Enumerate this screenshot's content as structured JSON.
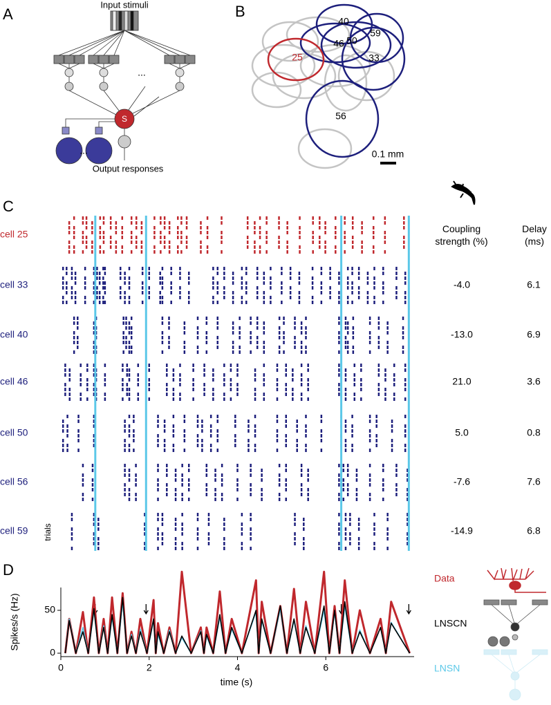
{
  "panel_labels": [
    "A",
    "B",
    "C",
    "D"
  ],
  "panel_a": {
    "input_label": "Input stimuli",
    "nonlinearity_label": "S",
    "ellipsis": "...",
    "output_label": "Output responses"
  },
  "panel_b": {
    "cell_labels": [
      "40",
      "59",
      "46",
      "50",
      "33",
      "25",
      "56"
    ],
    "scale_bar": "0.1 mm"
  },
  "panel_c": {
    "y_label": "trials",
    "columns": [
      "Coupling strength (%)",
      "Delay (ms)"
    ],
    "cells": [
      {
        "name": "cell 25",
        "color": "#c0282d",
        "spike_times": [
          0.19,
          0.3,
          0.5,
          0.58,
          0.71,
          0.89,
          0.97,
          1.13,
          1.25,
          1.39,
          1.6,
          1.71,
          1.83,
          2.12,
          2.26,
          2.35,
          2.46,
          2.65,
          2.73,
          2.85,
          3.17,
          3.32,
          3.64,
          4.23,
          4.39,
          4.51,
          4.66,
          4.94,
          5.13,
          5.41,
          5.71,
          5.86,
          5.99,
          6.22,
          6.43,
          6.61,
          6.82,
          7.08,
          7.34,
          7.77
        ]
      },
      {
        "name": "cell 33",
        "color": "#1d1f7c",
        "coupling": "-4.0",
        "delay": "6.1",
        "spike_times": [
          0.05,
          0.13,
          0.25,
          0.33,
          0.55,
          0.75,
          0.82,
          0.88,
          0.96,
          1.0,
          1.35,
          1.45,
          1.55,
          1.85,
          2.0,
          2.25,
          2.3,
          2.5,
          2.7,
          2.9,
          3.45,
          3.55,
          3.7,
          3.9,
          4.1,
          4.2,
          4.45,
          4.6,
          4.75,
          5.0,
          5.2,
          5.4,
          5.7,
          5.9,
          6.1,
          6.3,
          6.5,
          6.6,
          6.75,
          6.95,
          7.1,
          7.3,
          7.6,
          7.8
        ]
      },
      {
        "name": "cell 40",
        "color": "#1d1f7c",
        "coupling": "-13.0",
        "delay": "6.9",
        "spike_times": [
          0.3,
          0.38,
          0.75,
          0.8,
          1.42,
          1.48,
          1.55,
          1.6,
          2.3,
          2.45,
          2.8,
          3.1,
          3.3,
          3.55,
          3.9,
          4.05,
          4.3,
          4.45,
          4.6,
          4.95,
          5.05,
          5.3,
          5.45,
          5.55,
          6.3,
          6.45,
          6.5,
          6.62,
          7.0,
          7.2,
          7.4,
          7.75
        ]
      },
      {
        "name": "cell 46",
        "color": "#1d1f7c",
        "coupling": "21.0",
        "delay": "3.6",
        "spike_times": [
          0.1,
          0.2,
          0.45,
          0.6,
          0.75,
          0.8,
          1.0,
          1.4,
          1.5,
          1.55,
          1.75,
          2.0,
          2.4,
          2.55,
          2.7,
          3.0,
          3.25,
          3.45,
          3.7,
          3.85,
          4.0,
          4.4,
          4.6,
          4.9,
          5.1,
          5.25,
          5.45,
          5.6,
          6.3,
          6.45,
          6.65,
          6.8,
          7.2,
          7.35,
          7.55,
          7.8
        ]
      },
      {
        "name": "cell 50",
        "color": "#1d1f7c",
        "coupling": "5.0",
        "delay": "0.8",
        "spike_times": [
          0.05,
          0.15,
          0.4,
          0.75,
          1.45,
          1.55,
          1.65,
          2.2,
          2.35,
          2.55,
          2.8,
          3.1,
          3.2,
          3.4,
          3.55,
          3.95,
          4.25,
          4.4,
          4.9,
          5.1,
          5.35,
          5.55,
          5.9,
          6.35,
          6.45,
          6.6,
          7.0,
          7.15,
          7.5,
          7.8
        ]
      },
      {
        "name": "cell 56",
        "color": "#1d1f7c",
        "coupling": "-7.6",
        "delay": "7.6",
        "spike_times": [
          0.5,
          0.72,
          1.45,
          1.55,
          1.7,
          2.2,
          2.4,
          2.6,
          2.75,
          2.9,
          3.3,
          3.5,
          3.65,
          4.0,
          4.3,
          4.55,
          4.95,
          5.1,
          5.45,
          5.6,
          6.3,
          6.4,
          6.5,
          6.7,
          7.0,
          7.3,
          7.6,
          7.85
        ]
      },
      {
        "name": "cell 59",
        "color": "#1d1f7c",
        "coupling": "-14.9",
        "delay": "6.8",
        "spike_times": [
          0.25,
          0.75,
          0.85,
          1.9,
          2.2,
          2.3,
          2.6,
          2.75,
          3.1,
          3.35,
          3.7,
          4.1,
          4.3,
          5.3,
          5.5,
          6.3,
          6.45,
          6.55,
          6.75,
          7.1,
          7.4,
          7.85
        ]
      }
    ]
  },
  "chart_data": {
    "type": "line",
    "x_label": "time (s)",
    "y_label": "Spikes/s (Hz)",
    "x": [
      0.1,
      0.19,
      0.34,
      0.5,
      0.62,
      0.75,
      0.86,
      0.97,
      1.06,
      1.16,
      1.28,
      1.4,
      1.5,
      1.6,
      1.7,
      1.8,
      1.95,
      2.1,
      2.15,
      2.2,
      2.33,
      2.46,
      2.6,
      2.74,
      2.95,
      3.17,
      3.24,
      3.3,
      3.45,
      3.6,
      3.73,
      3.87,
      4.1,
      4.42,
      4.48,
      4.55,
      4.75,
      4.97,
      5.12,
      5.28,
      5.42,
      5.55,
      5.75,
      5.96,
      6.08,
      6.2,
      6.31,
      6.43,
      6.6,
      6.77,
      7.0,
      7.24,
      7.36,
      7.48,
      7.9
    ],
    "series": [
      {
        "name": "Data",
        "color": "#c0282d",
        "values": [
          0,
          40,
          0,
          48,
          0,
          65,
          0,
          40,
          0,
          65,
          0,
          70,
          0,
          25,
          0,
          40,
          0,
          62,
          0,
          35,
          0,
          30,
          0,
          95,
          0,
          30,
          0,
          30,
          0,
          72,
          0,
          40,
          0,
          85,
          0,
          60,
          0,
          55,
          0,
          75,
          0,
          60,
          0,
          95,
          0,
          55,
          0,
          85,
          0,
          50,
          0,
          40,
          0,
          60,
          0
        ]
      },
      {
        "name": "LNSN",
        "color": "#5bc8e8",
        "values": [
          0,
          40,
          0,
          30,
          0,
          50,
          0,
          32,
          0,
          42,
          0,
          60,
          0,
          22,
          0,
          28,
          0,
          38,
          0,
          22,
          0,
          27,
          0,
          18,
          0,
          26,
          0,
          20,
          0,
          42,
          0,
          28,
          0,
          48,
          0,
          38,
          0,
          52,
          0,
          38,
          0,
          32,
          0,
          50,
          0,
          48,
          0,
          55,
          0,
          27,
          0,
          30,
          0,
          36,
          0
        ]
      },
      {
        "name": "LNSCN",
        "color": "#000000",
        "values": [
          0,
          38,
          0,
          25,
          0,
          52,
          0,
          30,
          0,
          45,
          0,
          65,
          0,
          20,
          0,
          25,
          0,
          40,
          0,
          25,
          0,
          25,
          0,
          20,
          0,
          25,
          0,
          22,
          0,
          45,
          0,
          30,
          0,
          50,
          0,
          40,
          0,
          55,
          0,
          40,
          0,
          30,
          0,
          55,
          0,
          50,
          0,
          60,
          0,
          25,
          0,
          30,
          0,
          35,
          0
        ]
      }
    ],
    "xlim": [
      0,
      8
    ],
    "xticks": [
      0,
      2,
      4,
      6
    ],
    "ylim": [
      -4,
      100
    ],
    "yticks": [
      0,
      50
    ],
    "stimulus_times": [
      0.78,
      1.93,
      6.35,
      7.88
    ]
  }
}
